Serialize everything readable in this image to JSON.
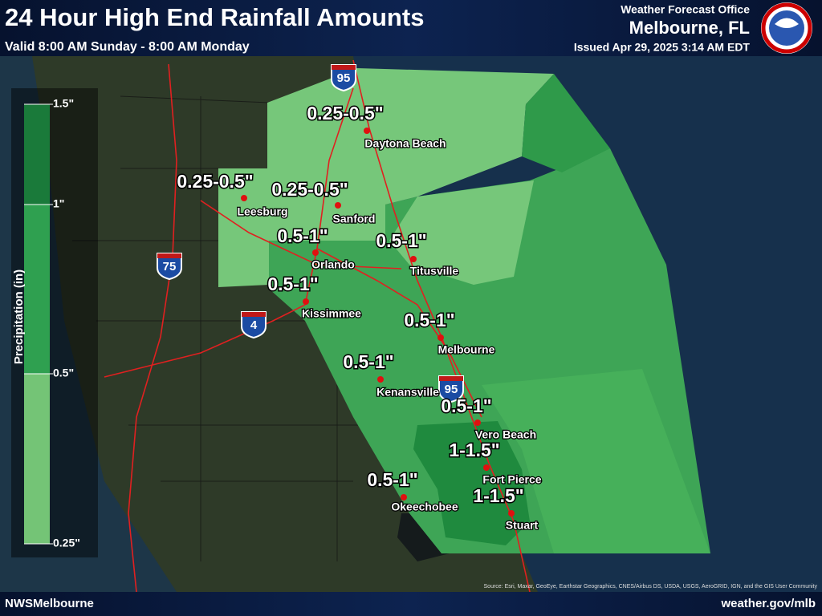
{
  "header": {
    "title": "24 Hour High End Rainfall Amounts",
    "valid": "Valid 8:00 AM Sunday - 8:00 AM Monday",
    "office": "Weather Forecast Office",
    "location": "Melbourne, FL",
    "issued": "Issued Apr 29, 2025 3:14 AM EDT"
  },
  "legend": {
    "title": "Precipitation (in)",
    "labels": [
      "1.5\"",
      "1\"",
      "0.5\"",
      "0.25\""
    ]
  },
  "cities": [
    {
      "name": "Daytona Beach",
      "amount": "0.25-0.5\""
    },
    {
      "name": "Leesburg",
      "amount": "0.25-0.5\""
    },
    {
      "name": "Sanford",
      "amount": "0.25-0.5\""
    },
    {
      "name": "Orlando",
      "amount": "0.5-1\""
    },
    {
      "name": "Titusville",
      "amount": "0.5-1\""
    },
    {
      "name": "Kissimmee",
      "amount": "0.5-1\""
    },
    {
      "name": "Melbourne",
      "amount": "0.5-1\""
    },
    {
      "name": "Kenansville",
      "amount": "0.5-1\""
    },
    {
      "name": "Vero Beach",
      "amount": "0.5-1\""
    },
    {
      "name": "Fort Pierce",
      "amount": "1-1.5\""
    },
    {
      "name": "Okeechobee",
      "amount": "0.5-1\""
    },
    {
      "name": "Stuart",
      "amount": "1-1.5\""
    }
  ],
  "highways": [
    "95",
    "75",
    "4",
    "95"
  ],
  "footer": {
    "left": "NWSMelbourne",
    "right": "weather.gov/mlb",
    "credits": "Source: Esri, Maxar, GeoEye, Earthstar Geographics, CNES/Airbus DS, USDA, USGS, AeroGRID, IGN, and the GIS User Community"
  }
}
